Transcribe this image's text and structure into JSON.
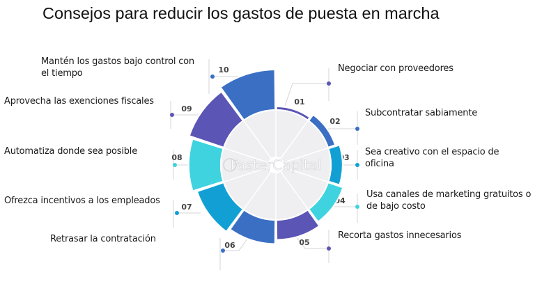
{
  "title": "Consejos para reducir los gastos de puesta en marcha",
  "watermark": "FasterCapital",
  "colors": {
    "purple": "#5b55b5",
    "blue": "#3a6fc4",
    "teal": "#12a0d4",
    "cyan": "#3fd3e0",
    "inner": "#efeff1",
    "connector": "#d4d4d8"
  },
  "tips": [
    {
      "number": "01",
      "label": "Negociar con proveedores",
      "color": "#5b55b5",
      "level": 1
    },
    {
      "number": "02",
      "label": "Subcontratar sabiamente",
      "color": "#3a6fc4",
      "level": 2
    },
    {
      "number": "03",
      "label": "Sea creativo con el espacio de oficina",
      "color": "#12a0d4",
      "level": 3
    },
    {
      "number": "04",
      "label": "Usa canales de marketing gratuitos o de bajo costo",
      "color": "#3fd3e0",
      "level": 4
    },
    {
      "number": "05",
      "label": "Recorta gastos innecesarios",
      "color": "#5b55b5",
      "level": 5
    },
    {
      "number": "06",
      "label": "Retrasar la contratación",
      "color": "#3a6fc4",
      "level": 6
    },
    {
      "number": "07",
      "label": "Ofrezca incentivos a los empleados",
      "color": "#12a0d4",
      "level": 7
    },
    {
      "number": "08",
      "label": "Automatiza donde sea posible",
      "color": "#3fd3e0",
      "level": 8
    },
    {
      "number": "09",
      "label": "Aprovecha las exenciones fiscales",
      "color": "#5b55b5",
      "level": 9
    },
    {
      "number": "10",
      "label": "Mantén los gastos bajo control con el tiempo",
      "color": "#3a6fc4",
      "level": 10
    }
  ]
}
